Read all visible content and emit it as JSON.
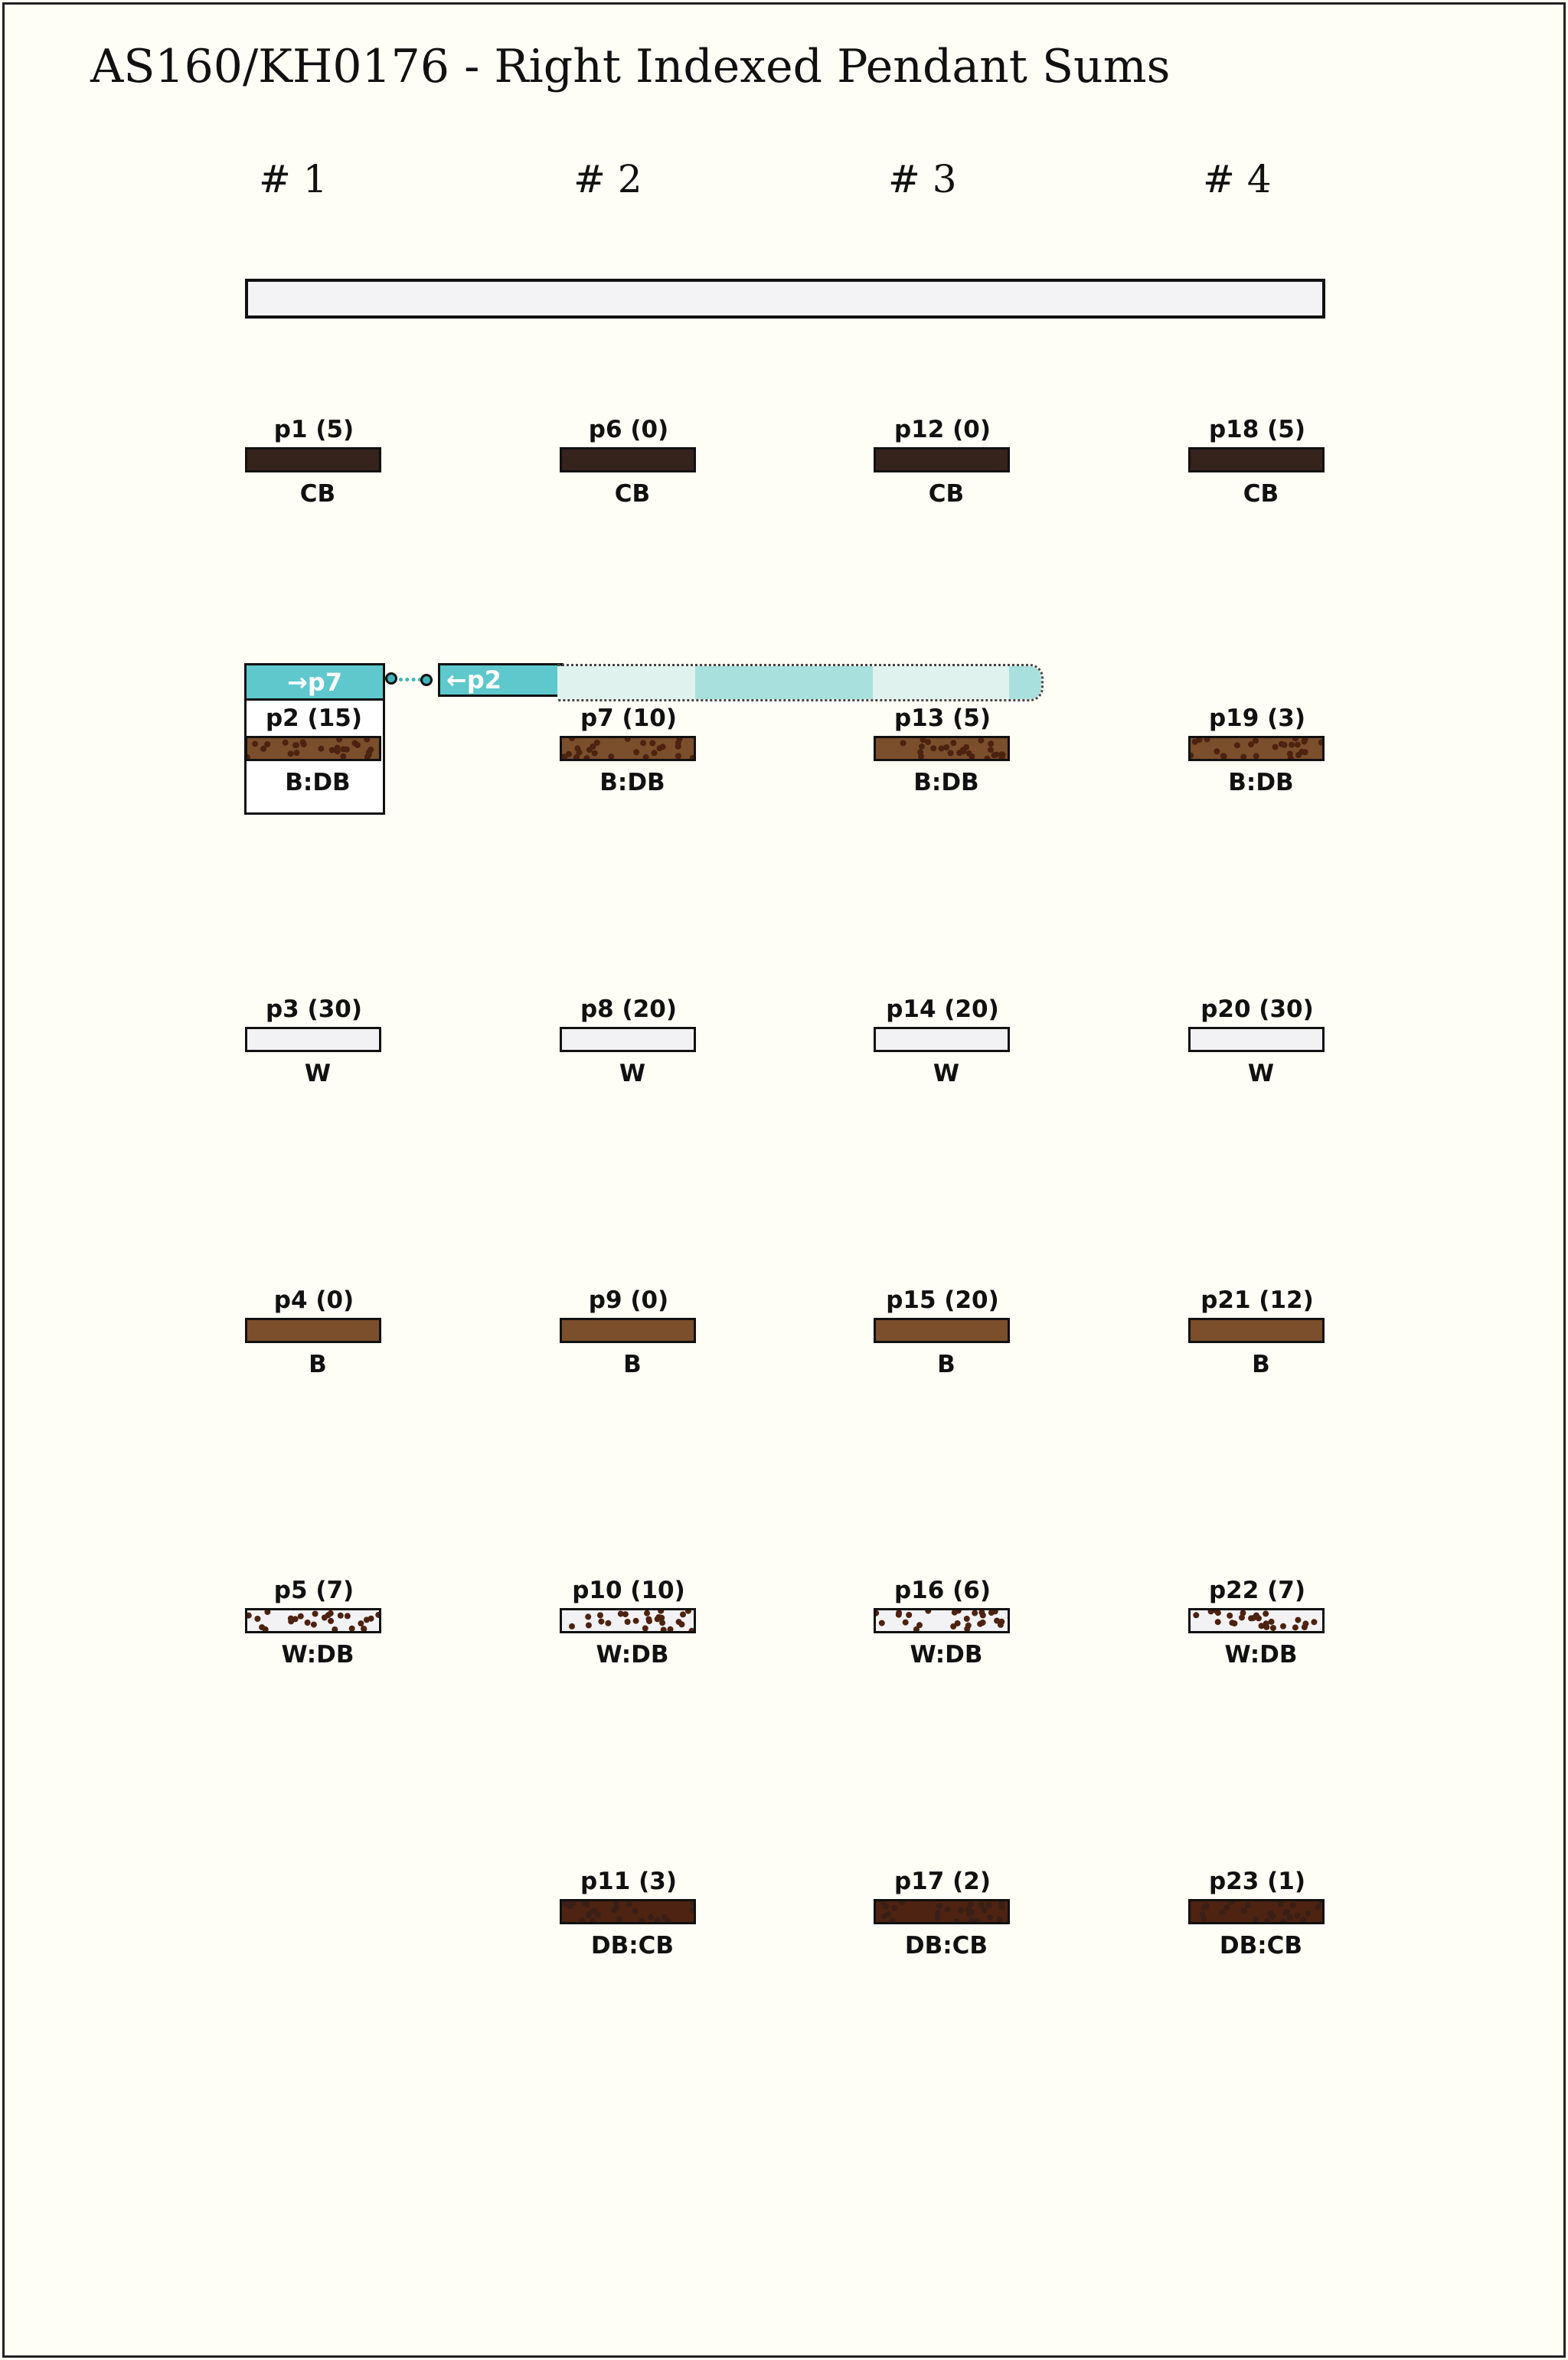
{
  "title": "AS160/KH0176 - Right Indexed Pendant Sums",
  "colors": {
    "CB": "#35231c",
    "B": "#7b4e2c",
    "W": "#f2f2f4",
    "DB": "#4c2210",
    "DB:CB": "#4e2312",
    "link": "#5ec8cc",
    "link_light": "#dff2ee",
    "link_mid": "#a8e0de",
    "background": "#fefef6"
  },
  "columns": [
    {
      "header": "# 1",
      "pendants": [
        {
          "label": "p1 (5)",
          "color": "CB"
        },
        {
          "label": "p2 (15)",
          "color": "B:DB"
        },
        {
          "label": "p3 (30)",
          "color": "W"
        },
        {
          "label": "p4 (0)",
          "color": "B"
        },
        {
          "label": "p5 (7)",
          "color": "W:DB"
        },
        null
      ]
    },
    {
      "header": "# 2",
      "pendants": [
        {
          "label": "p6 (0)",
          "color": "CB"
        },
        {
          "label": "p7 (10)",
          "color": "B:DB"
        },
        {
          "label": "p8 (20)",
          "color": "W"
        },
        {
          "label": "p9 (0)",
          "color": "B"
        },
        {
          "label": "p10 (10)",
          "color": "W:DB"
        },
        {
          "label": "p11 (3)",
          "color": "DB:CB"
        }
      ]
    },
    {
      "header": "# 3",
      "pendants": [
        {
          "label": "p12 (0)",
          "color": "CB"
        },
        {
          "label": "p13 (5)",
          "color": "B:DB"
        },
        {
          "label": "p14 (20)",
          "color": "W"
        },
        {
          "label": "p15 (20)",
          "color": "B"
        },
        {
          "label": "p16 (6)",
          "color": "W:DB"
        },
        {
          "label": "p17 (2)",
          "color": "DB:CB"
        }
      ]
    },
    {
      "header": "# 4",
      "pendants": [
        {
          "label": "p18 (5)",
          "color": "CB"
        },
        {
          "label": "p19 (3)",
          "color": "B:DB"
        },
        {
          "label": "p20 (30)",
          "color": "W"
        },
        {
          "label": "p21 (12)",
          "color": "B"
        },
        {
          "label": "p22 (7)",
          "color": "W:DB"
        },
        {
          "label": "p23 (1)",
          "color": "DB:CB"
        }
      ]
    }
  ],
  "link": {
    "source_tag": "→p7",
    "target_tag": "←p2"
  }
}
